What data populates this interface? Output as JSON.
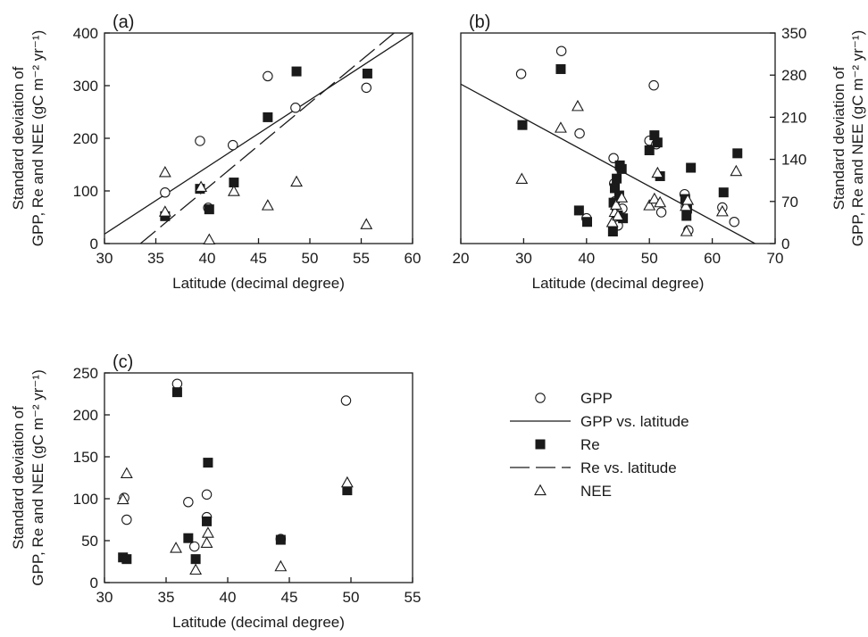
{
  "legend": {
    "placement": "right of panel (c)",
    "items": [
      {
        "label": "GPP",
        "symbol": "open-circle",
        "name": "gpp"
      },
      {
        "label": "GPP vs.  latitude",
        "symbol": "solid-line",
        "name": "gpp-fit"
      },
      {
        "label": "Re",
        "symbol": "filled-square",
        "name": "re"
      },
      {
        "label": "Re vs. latitude",
        "symbol": "dashed-line",
        "name": "re-fit"
      },
      {
        "label": "NEE",
        "symbol": "open-triangle",
        "name": "nee"
      }
    ]
  },
  "chart_data": [
    {
      "type": "scatter",
      "panel_label": "(a)",
      "xlabel": "Latitude (decimal degree)",
      "ylabel_line1": "Standard deviation of",
      "ylabel_line2": "GPP, Re and NEE (gC m⁻² yr⁻¹)",
      "ylabel_side": "left",
      "xlim": [
        30,
        60
      ],
      "ylim": [
        0,
        400
      ],
      "xticks": [
        30,
        35,
        40,
        45,
        50,
        55,
        60
      ],
      "yticks": [
        0,
        100,
        200,
        300,
        400
      ],
      "grid": false,
      "series": [
        {
          "name": "GPP",
          "marker": "open-circle",
          "points": [
            [
              35.9,
              97
            ],
            [
              39.3,
              195
            ],
            [
              40.1,
              68
            ],
            [
              42.5,
              187
            ],
            [
              45.9,
              318
            ],
            [
              48.6,
              258
            ],
            [
              55.5,
              296
            ]
          ]
        },
        {
          "name": "Re",
          "marker": "filled-square",
          "points": [
            [
              35.9,
              52
            ],
            [
              39.3,
              104
            ],
            [
              40.2,
              65
            ],
            [
              42.6,
              116
            ],
            [
              45.9,
              240
            ],
            [
              48.7,
              327
            ],
            [
              55.6,
              323
            ]
          ]
        },
        {
          "name": "NEE",
          "marker": "open-triangle",
          "points": [
            [
              35.9,
              135
            ],
            [
              35.9,
              60
            ],
            [
              39.4,
              107
            ],
            [
              40.2,
              7
            ],
            [
              42.6,
              99
            ],
            [
              45.9,
              72
            ],
            [
              48.7,
              117
            ],
            [
              55.5,
              36
            ]
          ]
        }
      ],
      "fits": [
        {
          "name": "GPP vs. latitude",
          "style": "solid",
          "from": [
            30,
            18
          ],
          "to": [
            60,
            400
          ]
        },
        {
          "name": "Re vs. latitude",
          "style": "dashed",
          "from": [
            33.5,
            0
          ],
          "to": [
            58.2,
            400
          ]
        }
      ]
    },
    {
      "type": "scatter",
      "panel_label": "(b)",
      "xlabel": "Latitude (decimal degree)",
      "ylabel_line1": "Standard deviation of",
      "ylabel_line2": "GPP, Re and NEE (gC m⁻² yr⁻¹)",
      "ylabel_side": "right",
      "xlim": [
        20,
        70
      ],
      "ylim": [
        0,
        350
      ],
      "xticks": [
        20,
        30,
        40,
        50,
        60,
        70
      ],
      "yticks": [
        0,
        70,
        140,
        210,
        280,
        350
      ],
      "grid": false,
      "series": [
        {
          "name": "GPP",
          "marker": "open-circle",
          "points": [
            [
              29.6,
              282
            ],
            [
              36.0,
              320
            ],
            [
              38.9,
              183
            ],
            [
              40.0,
              42
            ],
            [
              44.3,
              142
            ],
            [
              44.4,
              100
            ],
            [
              44.5,
              70
            ],
            [
              44.8,
              56
            ],
            [
              45.0,
              30
            ],
            [
              45.3,
              126
            ],
            [
              45.7,
              58
            ],
            [
              50.0,
              171
            ],
            [
              50.7,
              263
            ],
            [
              51.1,
              165
            ],
            [
              51.9,
              52
            ],
            [
              55.6,
              82
            ],
            [
              55.8,
              62
            ],
            [
              56.2,
              22
            ],
            [
              61.6,
              60
            ],
            [
              63.5,
              36
            ]
          ]
        },
        {
          "name": "Re",
          "marker": "filled-square",
          "points": [
            [
              29.8,
              197
            ],
            [
              35.9,
              290
            ],
            [
              38.8,
              55
            ],
            [
              40.1,
              36
            ],
            [
              44.2,
              20
            ],
            [
              44.3,
              68
            ],
            [
              44.5,
              92
            ],
            [
              44.8,
              108
            ],
            [
              45.0,
              47
            ],
            [
              45.2,
              80
            ],
            [
              45.3,
              130
            ],
            [
              45.6,
              124
            ],
            [
              45.8,
              42
            ],
            [
              50.0,
              155
            ],
            [
              50.8,
              180
            ],
            [
              51.3,
              168
            ],
            [
              51.7,
              112
            ],
            [
              55.7,
              74
            ],
            [
              55.9,
              46
            ],
            [
              56.0,
              58
            ],
            [
              56.6,
              126
            ],
            [
              61.8,
              85
            ],
            [
              64.0,
              150
            ]
          ]
        },
        {
          "name": "NEE",
          "marker": "open-triangle",
          "points": [
            [
              29.7,
              107
            ],
            [
              35.9,
              192
            ],
            [
              38.6,
              228
            ],
            [
              44.1,
              35
            ],
            [
              44.5,
              52
            ],
            [
              44.7,
              64
            ],
            [
              45.0,
              46
            ],
            [
              45.6,
              76
            ],
            [
              50.0,
              63
            ],
            [
              50.8,
              74
            ],
            [
              51.3,
              117
            ],
            [
              51.7,
              68
            ],
            [
              55.8,
              62
            ],
            [
              55.9,
              20
            ],
            [
              56.1,
              72
            ],
            [
              61.6,
              53
            ],
            [
              63.8,
              120
            ]
          ]
        }
      ],
      "fits": [
        {
          "name": "GPP vs. latitude",
          "style": "solid",
          "from": [
            20,
            265
          ],
          "to": [
            66.8,
            0
          ]
        }
      ]
    },
    {
      "type": "scatter",
      "panel_label": "(c)",
      "xlabel": "Latitude (decimal degree)",
      "ylabel_line1": "Standard deviation of",
      "ylabel_line2": "GPP, Re and NEE (gC m⁻² yr⁻¹)",
      "ylabel_side": "left",
      "xlim": [
        30,
        55
      ],
      "ylim": [
        0,
        250
      ],
      "xticks": [
        30,
        35,
        40,
        45,
        50,
        55
      ],
      "yticks": [
        0,
        50,
        100,
        150,
        200,
        250
      ],
      "grid": false,
      "series": [
        {
          "name": "GPP",
          "marker": "open-circle",
          "points": [
            [
              31.6,
              101
            ],
            [
              31.8,
              75
            ],
            [
              35.9,
              237
            ],
            [
              36.8,
              96
            ],
            [
              37.3,
              43
            ],
            [
              38.3,
              78
            ],
            [
              38.3,
              105
            ],
            [
              44.3,
              52
            ],
            [
              49.6,
              217
            ]
          ]
        },
        {
          "name": "Re",
          "marker": "filled-square",
          "points": [
            [
              31.5,
              30
            ],
            [
              31.8,
              28
            ],
            [
              35.9,
              227
            ],
            [
              36.8,
              53
            ],
            [
              37.4,
              28
            ],
            [
              38.3,
              73
            ],
            [
              38.4,
              143
            ],
            [
              44.3,
              51
            ],
            [
              49.7,
              110
            ]
          ]
        },
        {
          "name": "NEE",
          "marker": "open-triangle",
          "points": [
            [
              31.5,
              99
            ],
            [
              31.8,
              130
            ],
            [
              35.8,
              41
            ],
            [
              37.4,
              15
            ],
            [
              38.3,
              47
            ],
            [
              38.4,
              59
            ],
            [
              44.3,
              19
            ],
            [
              49.7,
              119
            ]
          ]
        }
      ],
      "fits": []
    }
  ]
}
